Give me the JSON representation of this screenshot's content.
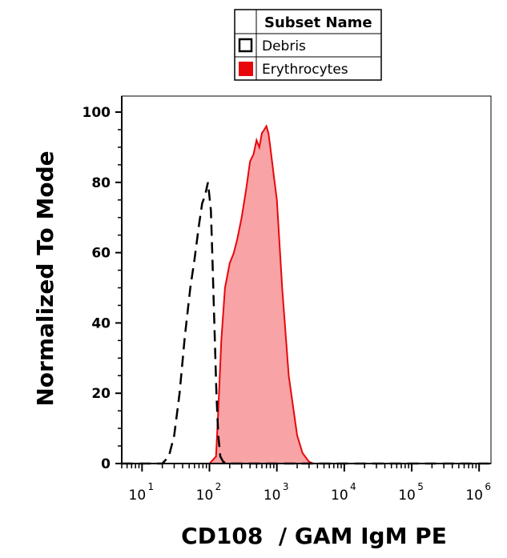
{
  "chart_data": {
    "type": "area",
    "xlabel": "CD108  / GAM IgM PE",
    "ylabel": "Normalized To Mode",
    "x_scale": "log",
    "xlim": [
      5,
      1500000
    ],
    "ylim": [
      0,
      100
    ],
    "y_ticks": [
      {
        "value": 0,
        "label": "0"
      },
      {
        "value": 20,
        "label": "20"
      },
      {
        "value": 40,
        "label": "40"
      },
      {
        "value": 60,
        "label": "60"
      },
      {
        "value": 80,
        "label": "80"
      },
      {
        "value": 100,
        "label": "100"
      }
    ],
    "x_ticks": [
      {
        "value": 10,
        "base": "10",
        "exp": "1"
      },
      {
        "value": 100,
        "base": "10",
        "exp": "2"
      },
      {
        "value": 1000,
        "base": "10",
        "exp": "3"
      },
      {
        "value": 10000,
        "base": "10",
        "exp": "4"
      },
      {
        "value": 100000,
        "base": "10",
        "exp": "5"
      },
      {
        "value": 1000000,
        "base": "10",
        "exp": "6"
      }
    ],
    "legend": {
      "title": "Subset Name",
      "placement": "top"
    },
    "series": [
      {
        "name": "Debris",
        "style": "dashed",
        "color": "#000000",
        "fill": "none",
        "x": [
          5,
          20,
          25,
          30,
          36,
          43,
          52,
          60,
          70,
          78,
          85,
          90,
          95,
          100,
          105,
          110,
          118,
          127,
          135,
          145,
          160,
          180,
          200,
          500,
          5000,
          1500000
        ],
        "y": [
          0,
          0,
          2,
          8,
          20,
          36,
          50,
          58,
          68,
          74,
          76,
          78,
          80,
          76,
          72,
          60,
          40,
          20,
          8,
          2,
          0.5,
          0,
          0,
          0,
          0,
          0
        ]
      },
      {
        "name": "Erythrocytes",
        "style": "solid",
        "color": "#e8070b",
        "fill": "#f8a3a5",
        "x": [
          5,
          100,
          125,
          135,
          150,
          170,
          200,
          230,
          260,
          300,
          350,
          400,
          450,
          500,
          550,
          600,
          650,
          700,
          750,
          800,
          900,
          1000,
          1200,
          1500,
          2000,
          2400,
          3000,
          3500,
          5000,
          1500000
        ],
        "y": [
          0,
          0,
          2,
          15,
          35,
          50,
          57,
          60,
          64,
          70,
          78,
          86,
          88,
          92,
          90,
          94,
          95,
          96,
          94,
          90,
          82,
          75,
          50,
          25,
          8,
          3,
          0.5,
          0,
          0,
          0
        ]
      }
    ]
  }
}
